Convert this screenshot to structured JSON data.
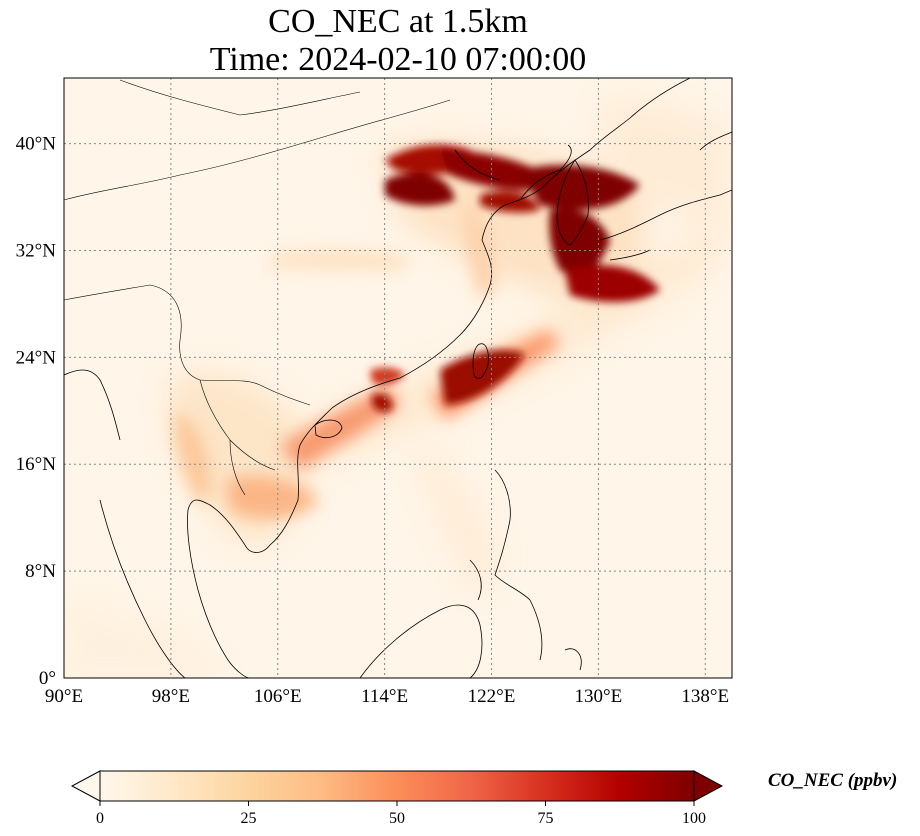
{
  "title": {
    "line1": "CO_NEC at 1.5km",
    "line2": "Time: 2024-02-10 07:00:00"
  },
  "map": {
    "lon_range": [
      90,
      140
    ],
    "lat_range": [
      0,
      40
    ],
    "lon_ticks": [
      "90°E",
      "98°E",
      "106°E",
      "114°E",
      "122°E",
      "130°E",
      "138°E"
    ],
    "lat_ticks": [
      "0°",
      "8°N",
      "16°N",
      "24°N",
      "32°N",
      "40°N"
    ],
    "gridlines": true,
    "colormap": "OrRd"
  },
  "colorbar": {
    "label": "CO_NEC (ppbv)",
    "ticks": [
      "0",
      "25",
      "50",
      "75",
      "100"
    ],
    "range": [
      0,
      100
    ],
    "extend": "both",
    "colors": [
      "#fff7ec",
      "#fee8c8",
      "#fdd49e",
      "#fdbb84",
      "#fc8d59",
      "#ef6548",
      "#d7301f",
      "#b30000",
      "#7f0000"
    ]
  }
}
